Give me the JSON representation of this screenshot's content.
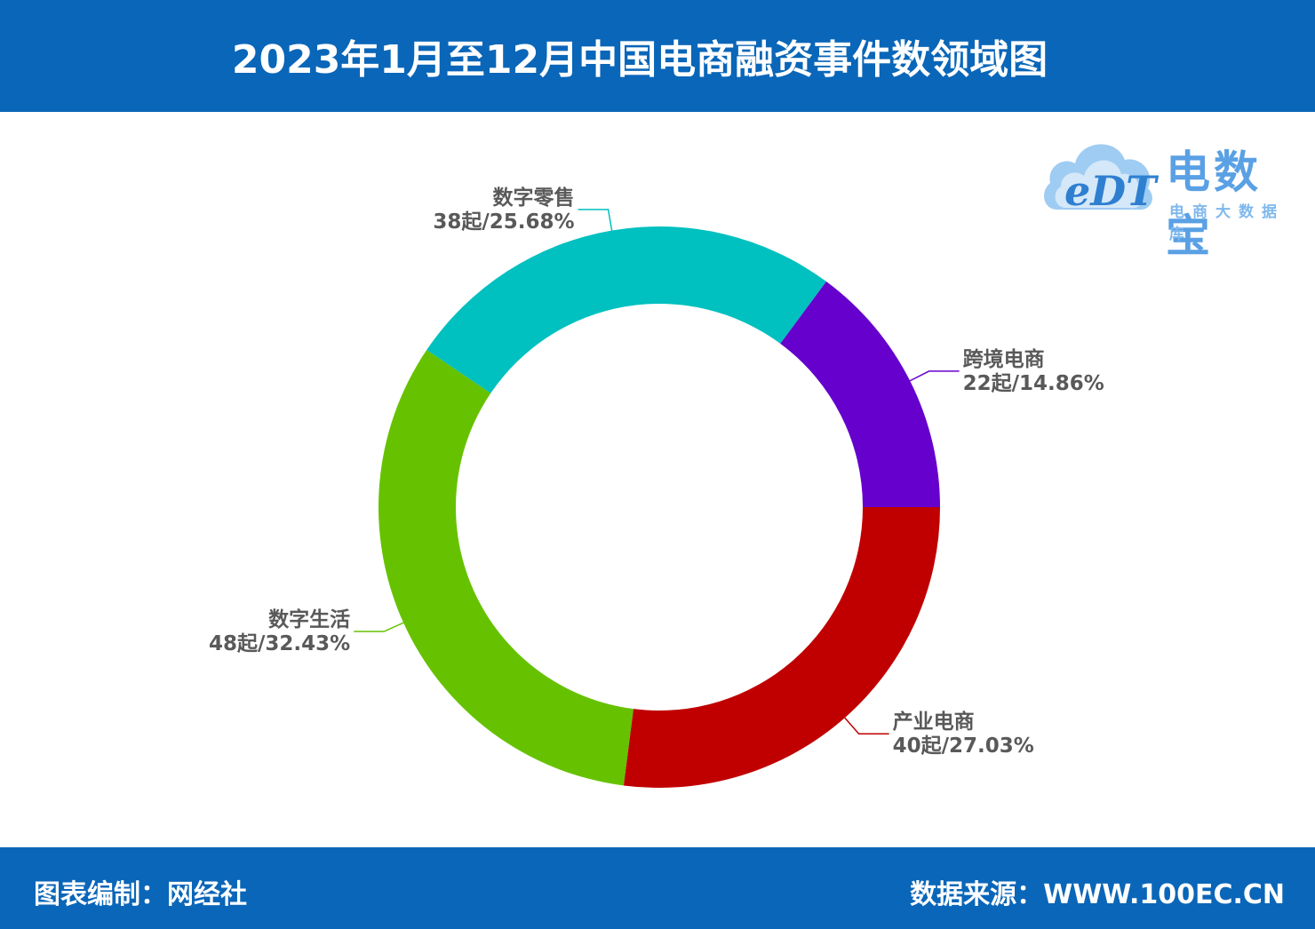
{
  "header": {
    "title": "2023年1月至12月中国电商融资事件数领域图"
  },
  "footer": {
    "left": "图表编制：网经社",
    "right": "数据来源：WWW.100EC.CN"
  },
  "logo": {
    "mark": "eDT",
    "name": "电数宝",
    "subtitle": "电商大数据库",
    "icon": "cloud-logo-icon"
  },
  "chart_data": {
    "type": "pie",
    "variant": "donut",
    "title": "2023年1月至12月中国电商融资事件数领域图",
    "categories": [
      "跨境电商",
      "产业电商",
      "数字生活",
      "数字零售"
    ],
    "values": [
      22,
      40,
      48,
      38
    ],
    "percents": [
      "14.86%",
      "27.03%",
      "32.43%",
      "25.68%"
    ],
    "unit": "起",
    "colors": [
      "#6600cc",
      "#c00000",
      "#66c200",
      "#00c0c0"
    ],
    "legend": "none"
  }
}
